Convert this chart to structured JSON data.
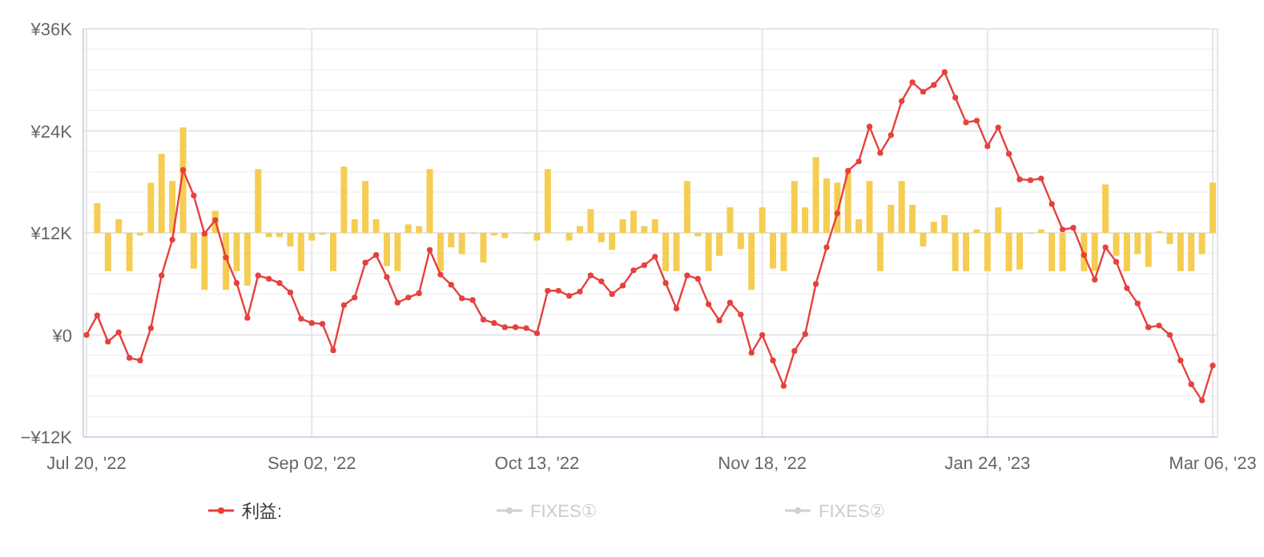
{
  "chart_data": {
    "type": "line",
    "categories": [
      "Jul 20, '22",
      null,
      null,
      null,
      null,
      null,
      null,
      null,
      null,
      null,
      null,
      null,
      null,
      null,
      null,
      null,
      null,
      null,
      null,
      null,
      null,
      "Sep 02, '22",
      null,
      null,
      null,
      null,
      null,
      null,
      null,
      null,
      null,
      null,
      null,
      null,
      null,
      null,
      null,
      null,
      null,
      null,
      null,
      null,
      "Oct 13, '22",
      null,
      null,
      null,
      null,
      null,
      null,
      null,
      null,
      null,
      null,
      null,
      null,
      null,
      null,
      null,
      null,
      null,
      null,
      null,
      null,
      "Nov 18, '22",
      null,
      null,
      null,
      null,
      null,
      null,
      null,
      null,
      null,
      null,
      null,
      null,
      null,
      null,
      null,
      null,
      null,
      null,
      null,
      null,
      "Jan 24, '23",
      null,
      null,
      null,
      null,
      null,
      null,
      null,
      null,
      null,
      null,
      null,
      null,
      null,
      null,
      null,
      null,
      null,
      null,
      null,
      null,
      "Mar 06, '23"
    ],
    "series": [
      {
        "type": "bar",
        "color": "#f5cd52",
        "base": [
          null,
          12000,
          12000,
          12000,
          12000,
          12000,
          12000,
          12000,
          12000,
          12000,
          12000,
          12000,
          12000,
          12000,
          12000,
          12000,
          12000,
          12000,
          12000,
          12000,
          12000,
          12000,
          12000,
          12000,
          12000,
          12000,
          12000,
          12000,
          12000,
          12000,
          12000,
          12000,
          12000,
          12000,
          12000,
          12000,
          12000,
          12000,
          12000,
          12000,
          null,
          12000,
          12000,
          12000,
          null,
          12000,
          12000,
          12000,
          12000,
          12000,
          12000,
          12000,
          12000,
          12000,
          12000,
          12000,
          12000,
          12000,
          12000,
          12000,
          12000,
          12000,
          12000,
          12000,
          12000,
          12000,
          12000,
          12000,
          12000,
          12000,
          12000,
          12000,
          12000,
          12000,
          12000,
          12000,
          12000,
          12000,
          12000,
          12000,
          12000,
          12000,
          12000,
          12000,
          12000,
          12000,
          12000,
          12000,
          12000,
          12000,
          12000,
          12000,
          null,
          12000,
          12000,
          12000,
          12000,
          12000,
          12000,
          12000,
          12000,
          12000,
          12000,
          12000,
          12000,
          12000
        ],
        "values": [
          null,
          3500,
          -4500,
          1600,
          -4500,
          -300,
          5900,
          9300,
          6100,
          12400,
          -4200,
          -6700,
          2600,
          -6700,
          -4500,
          -6200,
          7500,
          -500,
          -500,
          -1600,
          -4500,
          -900,
          -200,
          -4500,
          7800,
          1600,
          6100,
          1600,
          -3900,
          -4500,
          1000,
          800,
          7500,
          -4500,
          -1700,
          -2500,
          -100,
          -3500,
          -300,
          -600,
          null,
          -100,
          -900,
          7500,
          null,
          -900,
          800,
          2800,
          -1100,
          -2000,
          1600,
          2600,
          800,
          1600,
          -4500,
          -4500,
          6100,
          -400,
          -4500,
          -2700,
          3000,
          -1900,
          -6700,
          3000,
          -4200,
          -4500,
          6100,
          3000,
          8900,
          6400,
          5900,
          7200,
          1600,
          6100,
          -4500,
          3300,
          6100,
          3300,
          -1600,
          1300,
          2100,
          -4500,
          -4500,
          400,
          -4500,
          3000,
          -4500,
          -4300,
          -100,
          400,
          -4500,
          -4500,
          null,
          -4500,
          -4500,
          5700,
          -2700,
          -4500,
          -2500,
          -4000,
          200,
          -1300,
          -4500,
          -4500,
          -2500,
          5900
        ]
      },
      {
        "name": "利益:",
        "color": "#e5413d",
        "values": [
          0,
          2300,
          -800,
          300,
          -2700,
          -3000,
          800,
          7000,
          11200,
          19400,
          16400,
          11900,
          13500,
          9100,
          6100,
          2000,
          7000,
          6600,
          6100,
          5000,
          1900,
          1400,
          1300,
          -1800,
          3500,
          4400,
          8500,
          9400,
          6800,
          3800,
          4400,
          4900,
          10000,
          7100,
          5900,
          4300,
          4100,
          1800,
          1400,
          900,
          900,
          800,
          200,
          5200,
          5200,
          4600,
          5100,
          7000,
          6300,
          4800,
          5800,
          7600,
          8200,
          9200,
          6100,
          3100,
          7000,
          6600,
          3600,
          1700,
          3800,
          2400,
          -2100,
          0,
          -3000,
          -6000,
          -1900,
          100,
          6000,
          10300,
          14300,
          19300,
          20400,
          24500,
          21400,
          23500,
          27500,
          29700,
          28600,
          29400,
          30900,
          27900,
          25000,
          25200,
          22200,
          24400,
          21300,
          18300,
          18200,
          18400,
          15400,
          12400,
          12600,
          9400,
          6500,
          10300,
          8600,
          5500,
          3700,
          900,
          1100,
          0,
          -3000,
          -5800,
          -7700,
          -3600
        ]
      },
      {
        "name": "FIXES①",
        "color": "#d0d0d0",
        "values": [
          null,
          null,
          null,
          null,
          null,
          null,
          null,
          null,
          null,
          null,
          null,
          null,
          null,
          null,
          null,
          null,
          null,
          null,
          null,
          null,
          null,
          null,
          null,
          null,
          null,
          null,
          null,
          null,
          null,
          null,
          null,
          null,
          null,
          null,
          null,
          null,
          null,
          null,
          null,
          null,
          null,
          null,
          null,
          null,
          null,
          null,
          null,
          null,
          null,
          null,
          null,
          null,
          null,
          null,
          null,
          null,
          null,
          null,
          null,
          null,
          null,
          null,
          null,
          null,
          null,
          null,
          null,
          null,
          null,
          null,
          null,
          null,
          null,
          null,
          null,
          null,
          null,
          null,
          null,
          null,
          null,
          null,
          null,
          null,
          null,
          null,
          null,
          null,
          null,
          null,
          null,
          null,
          null,
          null,
          null,
          null,
          null,
          null,
          null,
          null,
          null,
          null,
          null,
          null,
          null,
          null
        ]
      },
      {
        "name": "FIXES②",
        "color": "#d0d0d0",
        "values": [
          null,
          null,
          null,
          null,
          null,
          null,
          null,
          null,
          null,
          null,
          null,
          null,
          null,
          null,
          null,
          null,
          null,
          null,
          null,
          null,
          null,
          null,
          null,
          null,
          null,
          null,
          null,
          null,
          null,
          null,
          null,
          null,
          null,
          null,
          null,
          null,
          null,
          null,
          null,
          null,
          null,
          null,
          null,
          null,
          null,
          null,
          null,
          null,
          null,
          null,
          null,
          null,
          null,
          null,
          null,
          null,
          null,
          null,
          null,
          null,
          null,
          null,
          null,
          null,
          null,
          null,
          null,
          null,
          null,
          null,
          null,
          null,
          null,
          null,
          null,
          null,
          null,
          null,
          null,
          null,
          null,
          null,
          null,
          null,
          null,
          null,
          null,
          null,
          null,
          null,
          null,
          null,
          null,
          null,
          null,
          null,
          null,
          null,
          null,
          null,
          null,
          null,
          null,
          null,
          null,
          null
        ]
      }
    ],
    "ylim": [
      -12000,
      36000
    ],
    "yticks": [
      {
        "value": -12000,
        "label": "−¥12K"
      },
      {
        "value": -9600,
        "label": null
      },
      {
        "value": -7200,
        "label": null
      },
      {
        "value": -4800,
        "label": null
      },
      {
        "value": -2400,
        "label": null
      },
      {
        "value": 0,
        "label": "¥0"
      },
      {
        "value": 2400,
        "label": null
      },
      {
        "value": 4800,
        "label": null
      },
      {
        "value": 7200,
        "label": null
      },
      {
        "value": 9600,
        "label": null
      },
      {
        "value": 12000,
        "label": "¥12K"
      },
      {
        "value": 14400,
        "label": null
      },
      {
        "value": 16800,
        "label": null
      },
      {
        "value": 19200,
        "label": null
      },
      {
        "value": 21600,
        "label": null
      },
      {
        "value": 24000,
        "label": "¥24K"
      },
      {
        "value": 26400,
        "label": null
      },
      {
        "value": 28800,
        "label": null
      },
      {
        "value": 31200,
        "label": null
      },
      {
        "value": 33600,
        "label": null
      },
      {
        "value": 36000,
        "label": "¥36K"
      }
    ],
    "grid": true,
    "legend": "bottom",
    "marker": "circle",
    "line_style": "solid"
  }
}
